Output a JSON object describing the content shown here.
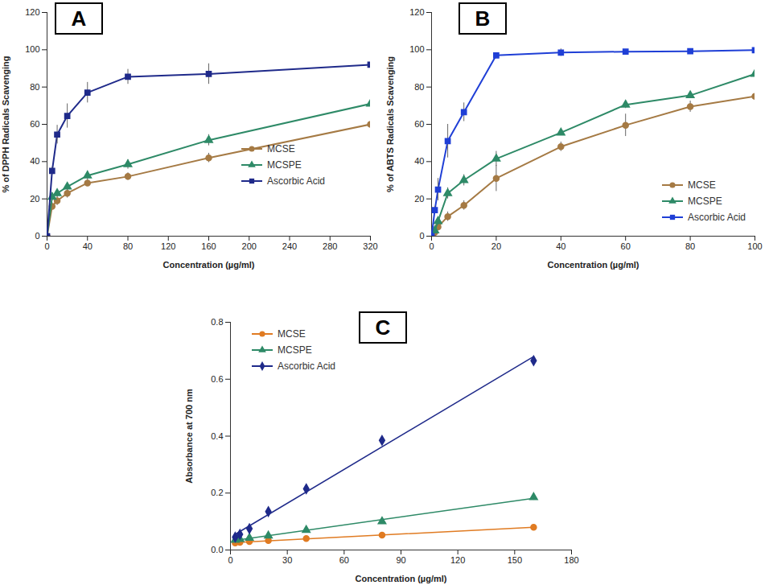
{
  "chart_data": [
    {
      "type": "line",
      "title": "A",
      "x_label": "Concentration (µg/ml)",
      "y_label": "% of DPPH Radicals Scavenging",
      "x": [
        0,
        5,
        10,
        20,
        40,
        80,
        160,
        320
      ],
      "xlim": [
        0,
        320
      ],
      "xticks": [
        0,
        40,
        80,
        120,
        160,
        200,
        240,
        280,
        320
      ],
      "ylim": [
        0,
        120
      ],
      "yticks": [
        0,
        20,
        40,
        60,
        80,
        100,
        120
      ],
      "series": [
        {
          "name": "MCSE",
          "color": "#a57a44",
          "marker": "circle",
          "values": [
            0,
            16,
            19,
            23,
            28.5,
            32,
            42,
            60
          ],
          "errors": [
            0,
            2,
            2.5,
            2.5,
            1.5,
            2,
            2.5,
            1.5
          ]
        },
        {
          "name": "MCSPE",
          "color": "#2e8a67",
          "marker": "triangle",
          "values": [
            0,
            21,
            23,
            26.5,
            32.5,
            38.5,
            51.5,
            71
          ],
          "errors": [
            0,
            2,
            2,
            2,
            2.5,
            2.5,
            3,
            4
          ]
        },
        {
          "name": "Ascorbic Acid",
          "color": "#1f2a8a",
          "marker": "square",
          "values": [
            0,
            35,
            54.5,
            64.5,
            77,
            85.5,
            87,
            92
          ],
          "errors": [
            0,
            2,
            5,
            6.5,
            5.5,
            4,
            5.5,
            4.5
          ]
        }
      ]
    },
    {
      "type": "line",
      "title": "B",
      "x_label": "Concentration (µg/ml)",
      "y_label": "% of ABTS Radicals Scavenging",
      "x": [
        0,
        1,
        2,
        5,
        10,
        20,
        40,
        60,
        80,
        100
      ],
      "xlim": [
        0,
        100
      ],
      "xticks": [
        0,
        20,
        40,
        60,
        80,
        100
      ],
      "ylim": [
        0,
        120
      ],
      "yticks": [
        0,
        20,
        40,
        60,
        80,
        100,
        120
      ],
      "series": [
        {
          "name": "MCSE",
          "color": "#a57a44",
          "marker": "circle",
          "values": [
            0,
            2,
            5,
            10.5,
            16.5,
            31,
            48,
            59.5,
            69.5,
            75
          ],
          "errors": [
            0,
            1,
            1.5,
            2.5,
            2.5,
            7,
            2.5,
            6,
            3,
            0.5
          ]
        },
        {
          "name": "MCSPE",
          "color": "#2e8a67",
          "marker": "triangle",
          "values": [
            0,
            3,
            8,
            23,
            30,
            41.5,
            55.5,
            70.5,
            75.5,
            87
          ],
          "errors": [
            0,
            1,
            2,
            3,
            3,
            4,
            1.5,
            2,
            1.5,
            5
          ]
        },
        {
          "name": "Ascorbic Acid",
          "color": "#1f3fd6",
          "marker": "square",
          "values": [
            0,
            14,
            25,
            51,
            66.5,
            97,
            98.5,
            99,
            99.2,
            99.8
          ],
          "errors": [
            0,
            2,
            6,
            9,
            5,
            1,
            2,
            1,
            0.5,
            0.5
          ]
        }
      ]
    },
    {
      "type": "scatter",
      "title": "C",
      "x_label": "Concentration (µg/ml)",
      "y_label": "Absorbance at 700 nm",
      "x": [
        2.5,
        5,
        10,
        20,
        40,
        80,
        160
      ],
      "xlim": [
        0,
        180
      ],
      "xticks": [
        0,
        30,
        60,
        90,
        120,
        150,
        180
      ],
      "ylim": [
        0,
        0.8
      ],
      "yticks": [
        {
          "value": 0,
          "label": "0.0"
        },
        0.2,
        0.4,
        0.6,
        0.8
      ],
      "series": [
        {
          "name": "MCSE",
          "color": "#e07b22",
          "marker": "circle",
          "values": [
            0.025,
            0.027,
            0.03,
            0.033,
            0.04,
            0.052,
            0.08
          ],
          "errors": [
            0.002,
            0.002,
            0.002,
            0.002,
            0.003,
            0.003,
            0.004
          ]
        },
        {
          "name": "MCSPE",
          "color": "#2e8a67",
          "marker": "triangle",
          "values": [
            0.035,
            0.038,
            0.042,
            0.05,
            0.07,
            0.1,
            0.185
          ],
          "errors": [
            0.002,
            0.002,
            0.003,
            0.003,
            0.004,
            0.005,
            0.01
          ]
        },
        {
          "name": "Ascorbic Acid",
          "color": "#1f2a8a",
          "marker": "diamond",
          "values": [
            0.045,
            0.055,
            0.075,
            0.135,
            0.215,
            0.385,
            0.665
          ],
          "errors": [
            0.003,
            0.003,
            0.004,
            0.005,
            0.006,
            0.01,
            0.012
          ]
        }
      ]
    }
  ]
}
